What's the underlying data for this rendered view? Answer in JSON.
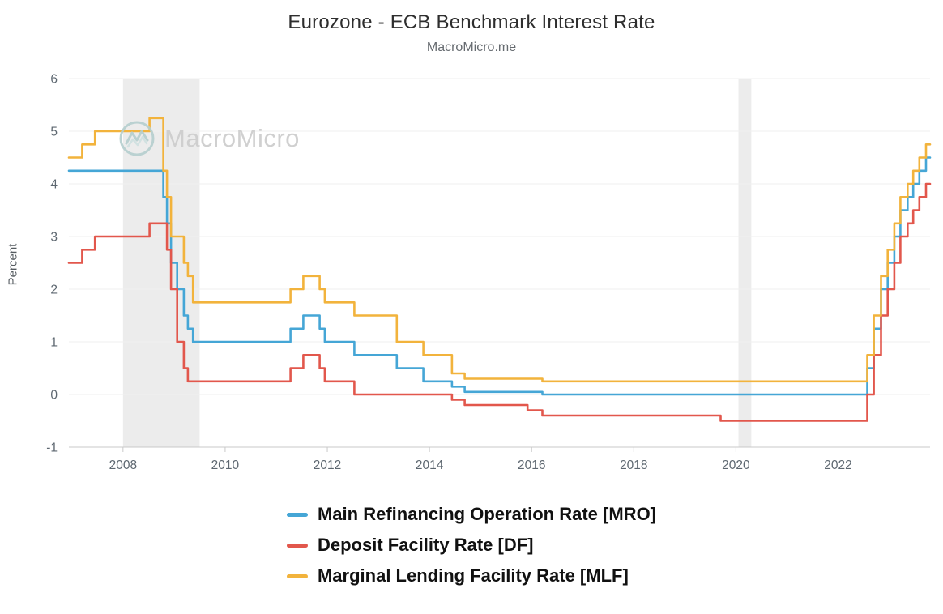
{
  "title": "Eurozone - ECB Benchmark Interest Rate",
  "subtitle": "MacroMicro.me",
  "watermark": {
    "text": "MacroMicro"
  },
  "colors": {
    "band": "#ececec",
    "grid": "#efefef",
    "axis_line": "#c9c9c9",
    "tick_text": "#5d6770",
    "title_text": "#2e2e2e",
    "subtitle_text": "#666b70",
    "watermark_text": "#cccccc",
    "watermark_logo": "#b5cfcf",
    "legend_text": "#111111",
    "mro_blue": "#45A6D6",
    "df_red": "#E2574C",
    "mlf_yellow": "#F2B33C"
  },
  "chart_data": {
    "type": "line",
    "step": true,
    "title": "Eurozone - ECB Benchmark Interest Rate",
    "subtitle": "MacroMicro.me",
    "xlabel": "",
    "ylabel": "Percent",
    "x_range": [
      2006.94,
      2023.8
    ],
    "y_range": [
      -1,
      6
    ],
    "x_ticks": [
      2008,
      2010,
      2012,
      2014,
      2016,
      2018,
      2020,
      2022
    ],
    "y_ticks": [
      6,
      5,
      4,
      3,
      2,
      1,
      0,
      -1
    ],
    "grid": true,
    "legend_position": "bottom-left-stacked",
    "recession_bands": [
      [
        2008.0,
        2009.5
      ],
      [
        2020.05,
        2020.3
      ]
    ],
    "series": [
      {
        "name": "Main Refinancing Operation Rate [MRO]",
        "color": "#45A6D6",
        "points": [
          [
            2006.94,
            4.25
          ],
          [
            2008.79,
            3.75
          ],
          [
            2008.86,
            3.25
          ],
          [
            2008.94,
            2.5
          ],
          [
            2009.06,
            2.0
          ],
          [
            2009.19,
            1.5
          ],
          [
            2009.27,
            1.25
          ],
          [
            2009.37,
            1.0
          ],
          [
            2011.28,
            1.25
          ],
          [
            2011.53,
            1.5
          ],
          [
            2011.85,
            1.25
          ],
          [
            2011.95,
            1.0
          ],
          [
            2012.53,
            0.75
          ],
          [
            2013.36,
            0.5
          ],
          [
            2013.88,
            0.25
          ],
          [
            2014.44,
            0.15
          ],
          [
            2014.69,
            0.05
          ],
          [
            2016.21,
            0.0
          ],
          [
            2022.57,
            0.5
          ],
          [
            2022.7,
            1.25
          ],
          [
            2022.84,
            2.0
          ],
          [
            2022.97,
            2.5
          ],
          [
            2023.1,
            3.0
          ],
          [
            2023.22,
            3.5
          ],
          [
            2023.36,
            3.75
          ],
          [
            2023.47,
            4.0
          ],
          [
            2023.59,
            4.25
          ],
          [
            2023.72,
            4.5
          ]
        ]
      },
      {
        "name": "Deposit Facility Rate [DF]",
        "color": "#E2574C",
        "points": [
          [
            2006.94,
            2.5
          ],
          [
            2007.2,
            2.75
          ],
          [
            2007.45,
            3.0
          ],
          [
            2008.52,
            3.25
          ],
          [
            2008.86,
            2.75
          ],
          [
            2008.94,
            2.0
          ],
          [
            2009.06,
            1.0
          ],
          [
            2009.19,
            0.5
          ],
          [
            2009.27,
            0.25
          ],
          [
            2011.28,
            0.5
          ],
          [
            2011.53,
            0.75
          ],
          [
            2011.85,
            0.5
          ],
          [
            2011.95,
            0.25
          ],
          [
            2012.53,
            0.0
          ],
          [
            2014.44,
            -0.1
          ],
          [
            2014.69,
            -0.2
          ],
          [
            2015.92,
            -0.3
          ],
          [
            2016.21,
            -0.4
          ],
          [
            2019.7,
            -0.5
          ],
          [
            2022.57,
            0.0
          ],
          [
            2022.7,
            0.75
          ],
          [
            2022.84,
            1.5
          ],
          [
            2022.97,
            2.0
          ],
          [
            2023.1,
            2.5
          ],
          [
            2023.22,
            3.0
          ],
          [
            2023.36,
            3.25
          ],
          [
            2023.47,
            3.5
          ],
          [
            2023.59,
            3.75
          ],
          [
            2023.72,
            4.0
          ]
        ]
      },
      {
        "name": "Marginal Lending Facility Rate [MLF]",
        "color": "#F2B33C",
        "points": [
          [
            2006.94,
            4.5
          ],
          [
            2007.2,
            4.75
          ],
          [
            2007.45,
            5.0
          ],
          [
            2008.52,
            5.25
          ],
          [
            2008.79,
            4.25
          ],
          [
            2008.86,
            3.75
          ],
          [
            2008.94,
            3.0
          ],
          [
            2009.19,
            2.5
          ],
          [
            2009.27,
            2.25
          ],
          [
            2009.37,
            1.75
          ],
          [
            2011.28,
            2.0
          ],
          [
            2011.53,
            2.25
          ],
          [
            2011.85,
            2.0
          ],
          [
            2011.95,
            1.75
          ],
          [
            2012.53,
            1.5
          ],
          [
            2013.36,
            1.0
          ],
          [
            2013.88,
            0.75
          ],
          [
            2014.44,
            0.4
          ],
          [
            2014.69,
            0.3
          ],
          [
            2016.21,
            0.25
          ],
          [
            2022.57,
            0.75
          ],
          [
            2022.7,
            1.5
          ],
          [
            2022.84,
            2.25
          ],
          [
            2022.97,
            2.75
          ],
          [
            2023.1,
            3.25
          ],
          [
            2023.22,
            3.75
          ],
          [
            2023.36,
            4.0
          ],
          [
            2023.47,
            4.25
          ],
          [
            2023.59,
            4.5
          ],
          [
            2023.72,
            4.75
          ]
        ]
      }
    ]
  }
}
